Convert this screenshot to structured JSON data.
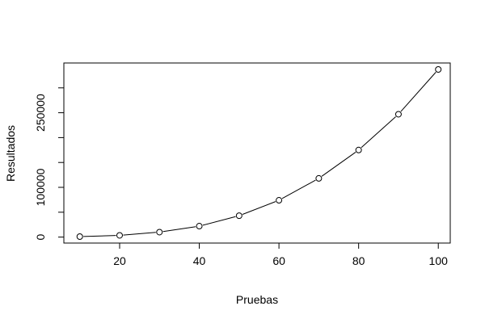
{
  "chart_data": {
    "type": "line",
    "xlabel": "Pruebas",
    "ylabel": "Resultados",
    "x": [
      10,
      20,
      30,
      40,
      50,
      60,
      70,
      80,
      90,
      100
    ],
    "y": [
      1000,
      3500,
      10000,
      22000,
      43000,
      74000,
      118000,
      175000,
      247000,
      337000
    ],
    "xlim": [
      6,
      103
    ],
    "ylim": [
      -12000,
      350000
    ],
    "x_ticks": [
      20,
      40,
      60,
      80,
      100
    ],
    "x_tick_labels": [
      "20",
      "40",
      "60",
      "80",
      "100"
    ],
    "y_ticks": [
      0,
      50000,
      100000,
      150000,
      200000,
      250000,
      300000
    ],
    "y_tick_labels": [
      "0",
      "",
      "100000",
      "",
      "",
      "250000",
      ""
    ],
    "markers": "open-circle",
    "grid": false,
    "legend": "none"
  }
}
